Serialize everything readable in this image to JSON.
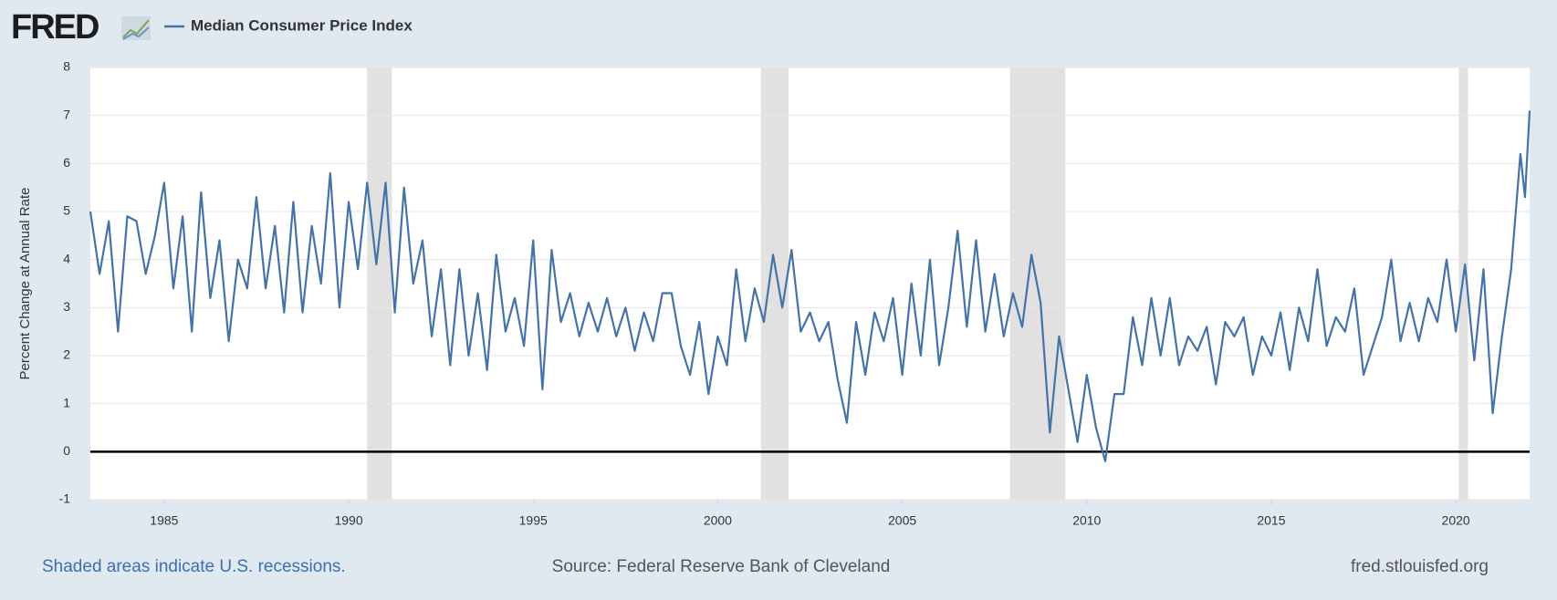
{
  "logo": "FRED",
  "chart_data": {
    "type": "line",
    "y_label": "Percent Change at Annual Rate",
    "x": [
      1983,
      1983.25,
      1983.5,
      1983.75,
      1984,
      1984.25,
      1984.5,
      1984.75,
      1985,
      1985.25,
      1985.5,
      1985.75,
      1986,
      1986.25,
      1986.5,
      1986.75,
      1987,
      1987.25,
      1987.5,
      1987.75,
      1988,
      1988.25,
      1988.5,
      1988.75,
      1989,
      1989.25,
      1989.5,
      1989.75,
      1990,
      1990.25,
      1990.5,
      1990.75,
      1991,
      1991.25,
      1991.5,
      1991.75,
      1992,
      1992.25,
      1992.5,
      1992.75,
      1993,
      1993.25,
      1993.5,
      1993.75,
      1994,
      1994.25,
      1994.5,
      1994.75,
      1995,
      1995.25,
      1995.5,
      1995.75,
      1996,
      1996.25,
      1996.5,
      1996.75,
      1997,
      1997.25,
      1997.5,
      1997.75,
      1998,
      1998.25,
      1998.5,
      1998.75,
      1999,
      1999.25,
      1999.5,
      1999.75,
      2000,
      2000.25,
      2000.5,
      2000.75,
      2001,
      2001.25,
      2001.5,
      2001.75,
      2002,
      2002.25,
      2002.5,
      2002.75,
      2003,
      2003.25,
      2003.5,
      2003.75,
      2004,
      2004.25,
      2004.5,
      2004.75,
      2005,
      2005.25,
      2005.5,
      2005.75,
      2006,
      2006.25,
      2006.5,
      2006.75,
      2007,
      2007.25,
      2007.5,
      2007.75,
      2008,
      2008.25,
      2008.5,
      2008.75,
      2009,
      2009.25,
      2009.5,
      2009.75,
      2010,
      2010.25,
      2010.5,
      2010.75,
      2011,
      2011.25,
      2011.5,
      2011.75,
      2012,
      2012.25,
      2012.5,
      2012.75,
      2013,
      2013.25,
      2013.5,
      2013.75,
      2014,
      2014.25,
      2014.5,
      2014.75,
      2015,
      2015.25,
      2015.5,
      2015.75,
      2016,
      2016.25,
      2016.5,
      2016.75,
      2017,
      2017.25,
      2017.5,
      2017.75,
      2018,
      2018.25,
      2018.5,
      2018.75,
      2019,
      2019.25,
      2019.5,
      2019.75,
      2020,
      2020.25,
      2020.5,
      2020.75,
      2021,
      2021.25,
      2021.5,
      2021.75,
      2021.875,
      2022
    ],
    "series": [
      {
        "name": "Median Consumer Price Index",
        "color": "#4572a7",
        "values": [
          5.0,
          3.7,
          4.8,
          2.5,
          4.9,
          4.8,
          3.7,
          4.5,
          5.6,
          3.4,
          4.9,
          2.5,
          5.4,
          3.2,
          4.4,
          2.3,
          4.0,
          3.4,
          5.3,
          3.4,
          4.7,
          2.9,
          5.2,
          2.9,
          4.7,
          3.5,
          5.8,
          3.0,
          5.2,
          3.8,
          5.6,
          3.9,
          5.6,
          2.9,
          5.5,
          3.5,
          4.4,
          2.4,
          3.8,
          1.8,
          3.8,
          2.0,
          3.3,
          1.7,
          4.1,
          2.5,
          3.2,
          2.2,
          4.4,
          1.3,
          4.2,
          2.7,
          3.3,
          2.4,
          3.1,
          2.5,
          3.2,
          2.4,
          3.0,
          2.1,
          2.9,
          2.3,
          3.3,
          3.3,
          2.2,
          1.6,
          2.7,
          1.2,
          2.4,
          1.8,
          3.8,
          2.3,
          3.4,
          2.7,
          4.1,
          3.0,
          4.2,
          2.5,
          2.9,
          2.3,
          2.7,
          1.5,
          0.6,
          2.7,
          1.6,
          2.9,
          2.3,
          3.2,
          1.6,
          3.5,
          2.0,
          4.0,
          1.8,
          3.0,
          4.6,
          2.6,
          4.4,
          2.5,
          3.7,
          2.4,
          3.3,
          2.6,
          4.1,
          3.1,
          0.4,
          2.4,
          1.3,
          0.2,
          1.6,
          0.5,
          -0.2,
          1.2,
          1.2,
          2.8,
          1.8,
          3.2,
          2.0,
          3.2,
          1.8,
          2.4,
          2.1,
          2.6,
          1.4,
          2.7,
          2.4,
          2.8,
          1.6,
          2.4,
          2.0,
          2.9,
          1.7,
          3.0,
          2.3,
          3.8,
          2.2,
          2.8,
          2.5,
          3.4,
          1.6,
          2.2,
          2.8,
          4.0,
          2.3,
          3.1,
          2.3,
          3.2,
          2.7,
          4.0,
          2.5,
          3.9,
          1.9,
          3.8,
          0.8,
          2.4,
          3.8,
          6.2,
          5.3,
          7.1
        ]
      }
    ],
    "xlim": [
      1983,
      2022
    ],
    "xticks": [
      1985,
      1990,
      1995,
      2000,
      2005,
      2010,
      2015,
      2020
    ],
    "ylim": [
      -1,
      8
    ],
    "yticks": [
      -1,
      0,
      1,
      2,
      3,
      4,
      5,
      6,
      7,
      8
    ],
    "grid": true,
    "recessions": [
      [
        1990.5,
        1991.17
      ],
      [
        2001.17,
        2001.92
      ],
      [
        2007.92,
        2009.42
      ],
      [
        2020.08,
        2020.33
      ]
    ],
    "recession_color": "#e1e1e1",
    "footnote": "Shaded areas indicate U.S. recessions.",
    "source": "Source: Federal Reserve Bank of Cleveland",
    "site": "fred.stlouisfed.org"
  }
}
